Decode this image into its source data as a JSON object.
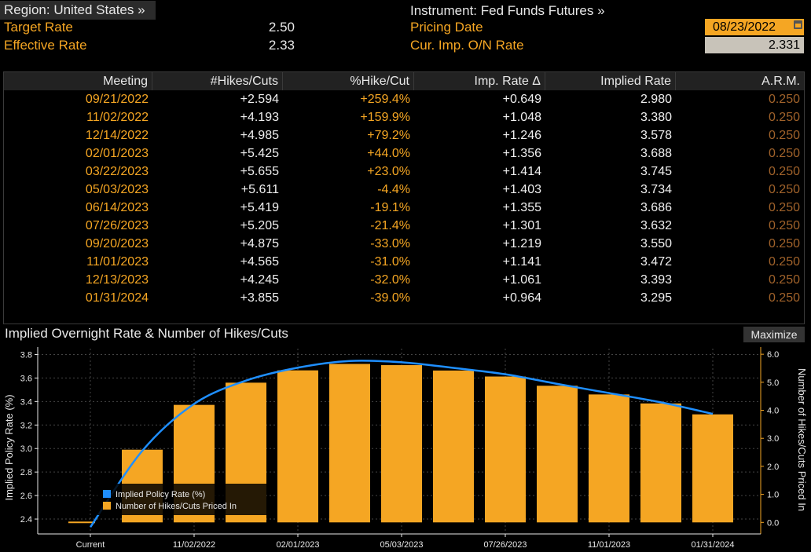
{
  "header": {
    "region_label": "Region: United States »",
    "target_rate_label": "Target Rate",
    "target_rate_value": "2.50",
    "effective_rate_label": "Effective Rate",
    "effective_rate_value": "2.33",
    "instrument_label": "Instrument: Fed Funds Futures »",
    "pricing_date_label": "Pricing Date",
    "pricing_date_value": "08/23/2022",
    "cur_imp_label": "Cur. Imp. O/N Rate",
    "cur_imp_value": "2.331"
  },
  "table": {
    "columns": [
      "Meeting",
      "#Hikes/Cuts",
      "%Hike/Cut",
      "Imp. Rate Δ",
      "Implied Rate",
      "A.R.M."
    ],
    "rows": [
      [
        "09/21/2022",
        "+2.594",
        "+259.4%",
        "+0.649",
        "2.980",
        "0.250"
      ],
      [
        "11/02/2022",
        "+4.193",
        "+159.9%",
        "+1.048",
        "3.380",
        "0.250"
      ],
      [
        "12/14/2022",
        "+4.985",
        "+79.2%",
        "+1.246",
        "3.578",
        "0.250"
      ],
      [
        "02/01/2023",
        "+5.425",
        "+44.0%",
        "+1.356",
        "3.688",
        "0.250"
      ],
      [
        "03/22/2023",
        "+5.655",
        "+23.0%",
        "+1.414",
        "3.745",
        "0.250"
      ],
      [
        "05/03/2023",
        "+5.611",
        "-4.4%",
        "+1.403",
        "3.734",
        "0.250"
      ],
      [
        "06/14/2023",
        "+5.419",
        "-19.1%",
        "+1.355",
        "3.686",
        "0.250"
      ],
      [
        "07/26/2023",
        "+5.205",
        "-21.4%",
        "+1.301",
        "3.632",
        "0.250"
      ],
      [
        "09/20/2023",
        "+4.875",
        "-33.0%",
        "+1.219",
        "3.550",
        "0.250"
      ],
      [
        "11/01/2023",
        "+4.565",
        "-31.0%",
        "+1.141",
        "3.472",
        "0.250"
      ],
      [
        "12/13/2023",
        "+4.245",
        "-32.0%",
        "+1.061",
        "3.393",
        "0.250"
      ],
      [
        "01/31/2024",
        "+3.855",
        "-39.0%",
        "+0.964",
        "3.295",
        "0.250"
      ]
    ]
  },
  "chart_section": {
    "title": "Implied Overnight Rate & Number of Hikes/Cuts",
    "maximize_label": "Maximize"
  },
  "colors": {
    "accent_orange": "#f5a623",
    "line_blue": "#1f8fff",
    "background": "#000000"
  },
  "chart_data": {
    "type": "bar",
    "categories": [
      "Current",
      "09/21/2022",
      "11/02/2022",
      "12/14/2022",
      "02/01/2023",
      "03/22/2023",
      "05/03/2023",
      "06/14/2023",
      "07/26/2023",
      "09/20/2023",
      "11/01/2023",
      "12/13/2023",
      "01/31/2024"
    ],
    "x_tick_labels": [
      "Current",
      "11/02/2022",
      "02/01/2023",
      "05/03/2023",
      "07/26/2023",
      "11/01/2023",
      "01/31/2024"
    ],
    "series": [
      {
        "name": "Implied Policy Rate (%)",
        "type": "line",
        "axis": "left",
        "values": [
          2.331,
          2.98,
          3.38,
          3.578,
          3.688,
          3.745,
          3.734,
          3.686,
          3.632,
          3.55,
          3.472,
          3.393,
          3.295
        ]
      },
      {
        "name": "Number of Hikes/Cuts Priced In",
        "type": "bar",
        "axis": "right",
        "values": [
          0,
          2.594,
          4.193,
          4.985,
          5.425,
          5.655,
          5.611,
          5.419,
          5.205,
          4.875,
          4.565,
          4.245,
          3.855
        ]
      }
    ],
    "ylabel": "Implied Policy Rate (%)",
    "y2label": "Number of Hikes/Cuts Priced In",
    "ylim": [
      2.3,
      3.85
    ],
    "y2lim": [
      -0.3,
      6.2
    ],
    "yticks": [
      "2.4",
      "2.6",
      "2.8",
      "3.0",
      "3.2",
      "3.4",
      "3.6",
      "3.8"
    ],
    "y2ticks": [
      "0.0",
      "1.0",
      "2.0",
      "3.0",
      "4.0",
      "5.0",
      "6.0"
    ],
    "grid": true,
    "legend": "bottom-left"
  }
}
